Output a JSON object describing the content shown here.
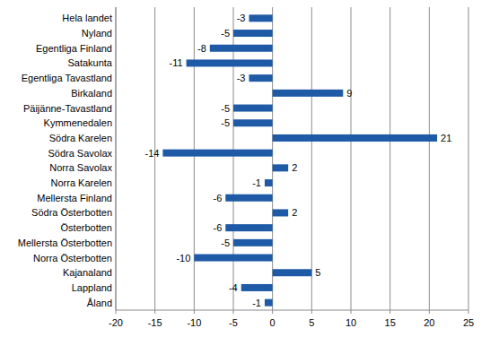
{
  "chart_data": {
    "type": "bar",
    "orientation": "horizontal",
    "categories": [
      "Hela landet",
      "Nyland",
      "Egentliga Finland",
      "Satakunta",
      "Egentliga Tavastland",
      "Birkaland",
      "Päijänne-Tavastland",
      "Kymmenedalen",
      "Södra Karelen",
      "Södra Savolax",
      "Norra Savolax",
      "Norra Karelen",
      "Mellersta Finland",
      "Södra Österbotten",
      "Österbotten",
      "Mellersta Österbotten",
      "Norra Österbotten",
      "Kajanaland",
      "Lappland",
      "Åland"
    ],
    "values": [
      -3,
      -5,
      -8,
      -11,
      -3,
      9,
      -5,
      -5,
      21,
      -14,
      2,
      -1,
      -6,
      2,
      -6,
      -5,
      -10,
      5,
      -4,
      -1
    ],
    "color": "#1f5aa6",
    "xlim": [
      -20,
      25
    ],
    "xticks": [
      -20,
      -15,
      -10,
      -5,
      0,
      5,
      10,
      15,
      20,
      25
    ],
    "grid": true,
    "data_labels": true
  }
}
